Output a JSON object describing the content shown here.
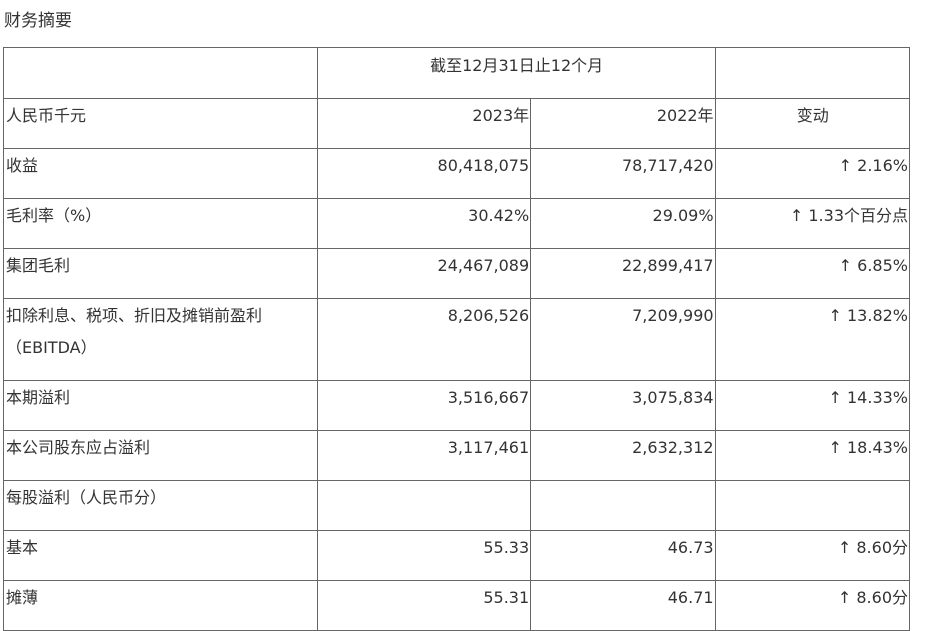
{
  "title": "财务摘要",
  "header": {
    "period": "截至12月31日止12个月",
    "unit": "人民币千元",
    "col_2023": "2023年",
    "col_2022": "2022年",
    "col_change": "变动"
  },
  "rows": [
    {
      "label": "收益",
      "y2023": "80,418,075",
      "y2022": "78,717,420",
      "change": "↑ 2.16%"
    },
    {
      "label": "毛利率（%）",
      "y2023": "30.42%",
      "y2022": "29.09%",
      "change": "↑ 1.33个百分点"
    },
    {
      "label": "集团毛利",
      "y2023": "24,467,089",
      "y2022": "22,899,417",
      "change": "↑ 6.85%"
    },
    {
      "label": "扣除利息、税项、折旧及摊销前盈利（EBITDA）",
      "y2023": "8,206,526",
      "y2022": "7,209,990",
      "change": "↑ 13.82%"
    },
    {
      "label": "本期溢利",
      "y2023": "3,516,667",
      "y2022": "3,075,834",
      "change": "↑ 14.33%"
    },
    {
      "label": "本公司股东应占溢利",
      "y2023": "3,117,461",
      "y2022": "2,632,312",
      "change": "↑ 18.43%"
    },
    {
      "label": "每股溢利（人民币分）",
      "y2023": "",
      "y2022": "",
      "change": ""
    },
    {
      "label": "基本",
      "y2023": "55.33",
      "y2022": "46.73",
      "change": "↑ 8.60分"
    },
    {
      "label": "摊薄",
      "y2023": "55.31",
      "y2022": "46.71",
      "change": "↑ 8.60分"
    }
  ]
}
